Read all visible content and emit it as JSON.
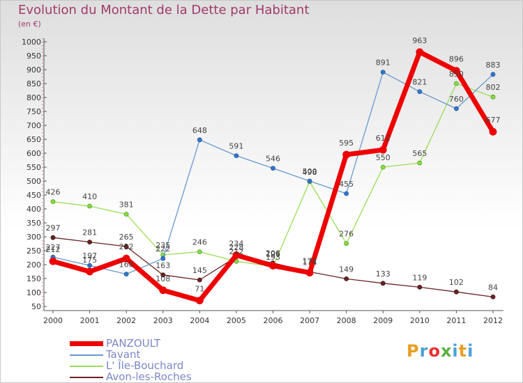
{
  "title": "Evolution du Montant de la Dette par Habitant",
  "subtitle": "(en €)",
  "brand": {
    "letters": [
      "P",
      "r",
      "o",
      "x",
      "i",
      "t",
      "i"
    ],
    "colors": [
      "#e8a020",
      "#4aa0d8",
      "#e83030",
      "#5cb040",
      "#4aa0d8",
      "#e8a020",
      "#4aa0d8"
    ]
  },
  "chart_data": {
    "type": "line",
    "title": "Evolution du Montant de la Dette par Habitant",
    "ylabel": "(en €)",
    "xlabel": "",
    "categories": [
      "2000",
      "2001",
      "2002",
      "2003",
      "2004",
      "2005",
      "2006",
      "2007",
      "2008",
      "2009",
      "2010",
      "2011",
      "2012"
    ],
    "ylim": [
      50,
      1000
    ],
    "yticks": [
      50,
      100,
      150,
      200,
      250,
      300,
      350,
      400,
      450,
      500,
      550,
      600,
      650,
      700,
      750,
      800,
      850,
      900,
      950,
      1000
    ],
    "grid": false,
    "legend_position": "bottom-left",
    "series": [
      {
        "name": "PANZOULT",
        "color": "#ee0000",
        "values": [
          212,
          175,
          222,
          108,
          71,
          234,
          196,
          171,
          595,
          612,
          963,
          896,
          677
        ]
      },
      {
        "name": "Tavant",
        "color": "#6699cc",
        "values": [
          227,
          197,
          166,
          222,
          648,
          591,
          546,
          500,
          455,
          891,
          821,
          760,
          883
        ]
      },
      {
        "name": "L' Île-Bouchard",
        "color": "#99dd55",
        "values": [
          426,
          410,
          381,
          235,
          246,
          212,
          193,
          498,
          276,
          550,
          565,
          850,
          802
        ]
      },
      {
        "name": "Avon-les-Roches",
        "color": "#6b2323",
        "values": [
          297,
          281,
          265,
          163,
          145,
          228,
          206,
          174,
          149,
          133,
          119,
          102,
          84
        ]
      }
    ]
  }
}
